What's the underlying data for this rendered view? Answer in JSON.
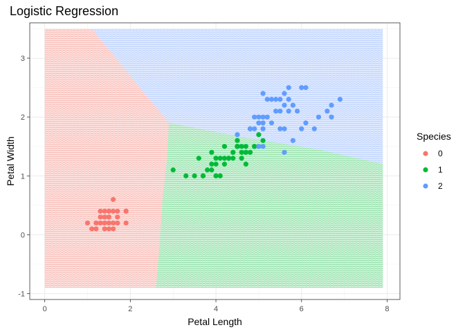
{
  "chart_data": {
    "type": "scatter",
    "title": "Logistic Regression",
    "xlabel": "Petal Length",
    "ylabel": "Petal Width",
    "xlim": [
      -0.35,
      8.3
    ],
    "ylim": [
      -1.1,
      3.6
    ],
    "xticks": [
      0,
      2,
      4,
      6,
      8
    ],
    "yticks": [
      -1,
      0,
      1,
      2,
      3
    ],
    "grid": true,
    "legend": {
      "title": "Species",
      "position": "right"
    },
    "background_regions": {
      "x_range": [
        0,
        7.9
      ],
      "y_range": [
        -0.9,
        3.5
      ],
      "class_0_boundary": [
        [
          1.1,
          3.5
        ],
        [
          2.9,
          1.9
        ],
        [
          2.85,
          1.25
        ],
        [
          2.75,
          0.6
        ],
        [
          2.7,
          0.0
        ],
        [
          2.6,
          -0.9
        ]
      ],
      "class_1_2_boundary": [
        [
          2.9,
          1.9
        ],
        [
          4.7,
          1.65
        ],
        [
          6.4,
          1.45
        ],
        [
          7.9,
          1.2
        ]
      ]
    },
    "series": [
      {
        "name": "0",
        "color": "#F8766D",
        "points": [
          [
            1.4,
            0.2
          ],
          [
            1.3,
            0.2
          ],
          [
            1.5,
            0.2
          ],
          [
            1.4,
            0.4
          ],
          [
            1.7,
            0.4
          ],
          [
            1.4,
            0.3
          ],
          [
            1.5,
            0.1
          ],
          [
            1.6,
            0.2
          ],
          [
            1.1,
            0.1
          ],
          [
            1.2,
            0.2
          ],
          [
            1.0,
            0.2
          ],
          [
            1.9,
            0.2
          ],
          [
            1.6,
            0.6
          ],
          [
            1.9,
            0.4
          ],
          [
            1.3,
            0.3
          ],
          [
            1.5,
            0.4
          ],
          [
            1.7,
            0.3
          ],
          [
            1.6,
            0.4
          ],
          [
            1.4,
            0.1
          ],
          [
            1.5,
            0.3
          ],
          [
            1.3,
            0.4
          ],
          [
            1.7,
            0.2
          ],
          [
            1.2,
            0.1
          ],
          [
            1.9,
            0.4
          ],
          [
            1.6,
            0.1
          ]
        ]
      },
      {
        "name": "1",
        "color": "#00BA38",
        "points": [
          [
            4.7,
            1.4
          ],
          [
            4.5,
            1.5
          ],
          [
            4.9,
            1.5
          ],
          [
            4.0,
            1.3
          ],
          [
            4.6,
            1.5
          ],
          [
            3.3,
            1.0
          ],
          [
            4.6,
            1.3
          ],
          [
            3.9,
            1.4
          ],
          [
            3.5,
            1.0
          ],
          [
            4.2,
            1.5
          ],
          [
            4.0,
            1.0
          ],
          [
            4.7,
            1.4
          ],
          [
            3.6,
            1.3
          ],
          [
            4.4,
            1.4
          ],
          [
            4.5,
            1.5
          ],
          [
            4.1,
            1.0
          ],
          [
            4.5,
            1.5
          ],
          [
            3.9,
            1.1
          ],
          [
            4.8,
            1.8
          ],
          [
            4.0,
            1.3
          ],
          [
            4.9,
            1.5
          ],
          [
            4.7,
            1.2
          ],
          [
            4.3,
            1.3
          ],
          [
            4.4,
            1.4
          ],
          [
            4.8,
            1.4
          ],
          [
            5.0,
            1.7
          ],
          [
            4.5,
            1.5
          ],
          [
            3.8,
            1.1
          ],
          [
            3.7,
            1.0
          ],
          [
            3.9,
            1.2
          ],
          [
            5.1,
            1.6
          ],
          [
            4.5,
            1.6
          ],
          [
            4.7,
            1.5
          ],
          [
            4.4,
            1.3
          ],
          [
            4.1,
            1.3
          ],
          [
            4.2,
            1.2
          ],
          [
            4.6,
            1.4
          ],
          [
            3.0,
            1.1
          ],
          [
            4.3,
            1.3
          ],
          [
            4.2,
            1.3
          ],
          [
            4.0,
            1.2
          ],
          [
            3.7,
            1.0
          ]
        ]
      },
      {
        "name": "2",
        "color": "#619CFF",
        "points": [
          [
            6.0,
            2.5
          ],
          [
            5.1,
            1.9
          ],
          [
            5.9,
            2.1
          ],
          [
            5.6,
            1.8
          ],
          [
            5.8,
            2.2
          ],
          [
            6.6,
            2.1
          ],
          [
            4.5,
            1.7
          ],
          [
            6.3,
            1.8
          ],
          [
            6.1,
            2.5
          ],
          [
            5.1,
            2.0
          ],
          [
            5.3,
            1.9
          ],
          [
            5.5,
            2.1
          ],
          [
            5.0,
            2.0
          ],
          [
            5.1,
            2.4
          ],
          [
            5.3,
            2.3
          ],
          [
            5.5,
            1.8
          ],
          [
            6.7,
            2.2
          ],
          [
            6.9,
            2.3
          ],
          [
            5.0,
            1.5
          ],
          [
            5.7,
            2.3
          ],
          [
            4.9,
            2.0
          ],
          [
            6.7,
            2.0
          ],
          [
            4.9,
            1.8
          ],
          [
            5.7,
            2.1
          ],
          [
            6.0,
            1.8
          ],
          [
            4.8,
            1.8
          ],
          [
            5.8,
            1.6
          ],
          [
            6.1,
            1.9
          ],
          [
            6.4,
            2.0
          ],
          [
            5.6,
            2.2
          ],
          [
            5.1,
            1.5
          ],
          [
            5.6,
            1.4
          ],
          [
            5.5,
            2.3
          ],
          [
            5.4,
            2.1
          ],
          [
            5.6,
            2.4
          ],
          [
            5.7,
            2.5
          ],
          [
            5.2,
            2.3
          ],
          [
            5.0,
            1.9
          ],
          [
            5.2,
            2.0
          ],
          [
            5.4,
            2.3
          ],
          [
            5.1,
            1.8
          ]
        ]
      }
    ]
  }
}
